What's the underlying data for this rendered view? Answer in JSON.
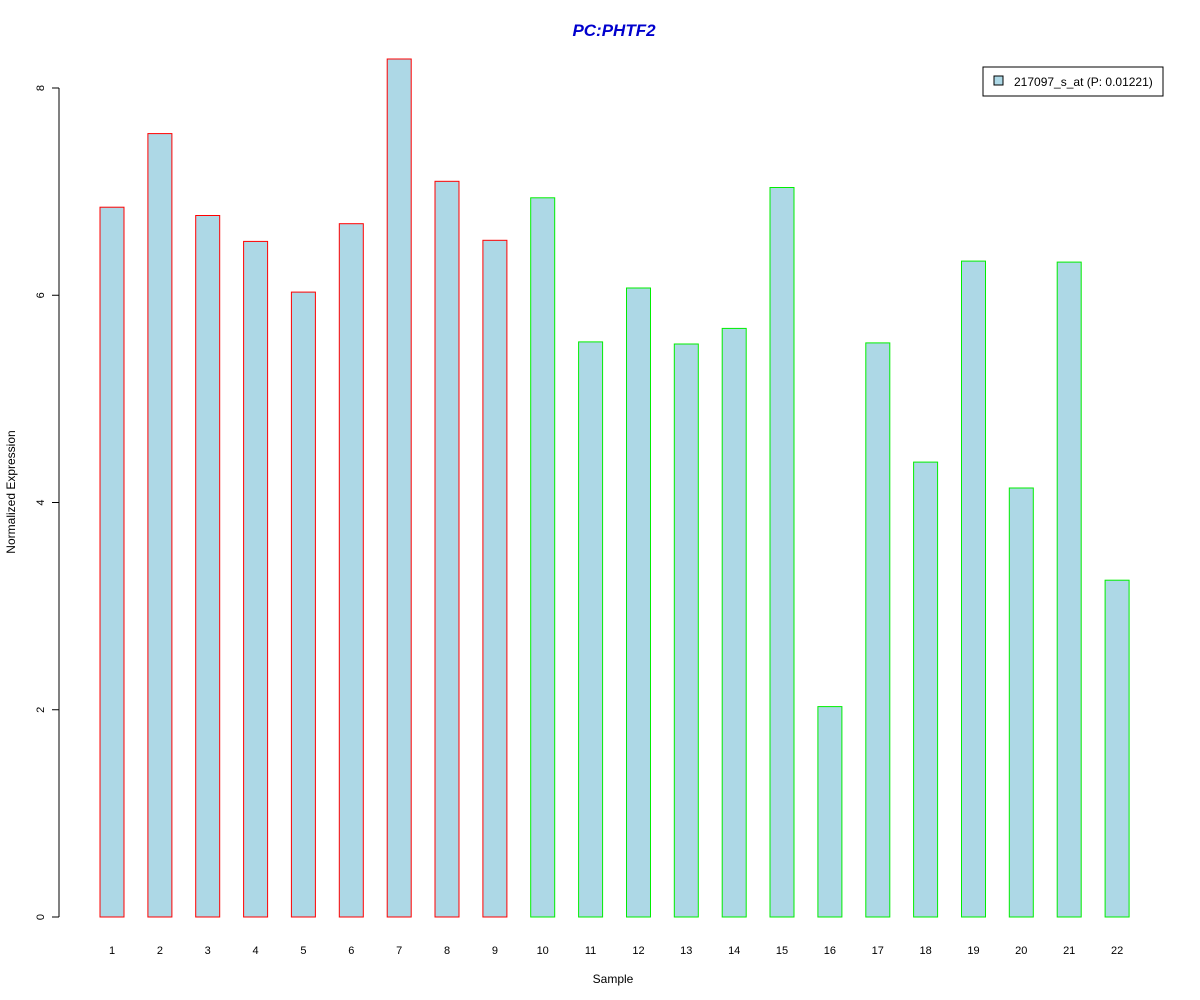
{
  "chart_data": {
    "type": "bar",
    "title": "PC:PHTF2",
    "xlabel": "Sample",
    "ylabel": "Normalized Expression",
    "categories": [
      "1",
      "2",
      "3",
      "4",
      "5",
      "6",
      "7",
      "8",
      "9",
      "10",
      "11",
      "12",
      "13",
      "14",
      "15",
      "16",
      "17",
      "18",
      "19",
      "20",
      "21",
      "22"
    ],
    "series": [
      {
        "name": "217097_s_at (P: 0.01221)",
        "values": [
          6.85,
          7.56,
          6.77,
          6.52,
          6.03,
          6.69,
          8.28,
          7.1,
          6.53,
          6.94,
          5.55,
          6.07,
          5.53,
          5.68,
          7.04,
          2.03,
          5.54,
          4.39,
          6.33,
          4.14,
          6.32,
          3.25
        ]
      }
    ],
    "group_border_colors": [
      "#ff0000",
      "#ff0000",
      "#ff0000",
      "#ff0000",
      "#ff0000",
      "#ff0000",
      "#ff0000",
      "#ff0000",
      "#ff0000",
      "#00ee00",
      "#00ee00",
      "#00ee00",
      "#00ee00",
      "#00ee00",
      "#00ee00",
      "#00ee00",
      "#00ee00",
      "#00ee00",
      "#00ee00",
      "#00ee00",
      "#00ee00",
      "#00ee00"
    ],
    "yticks": [
      0,
      2,
      4,
      6,
      8
    ],
    "ylim": [
      0,
      8.28
    ],
    "legend_position": "top-right",
    "grid": false,
    "colors": {
      "bar_fill": "#add8e6",
      "title": "#0000cd",
      "axis": "#000000"
    }
  }
}
